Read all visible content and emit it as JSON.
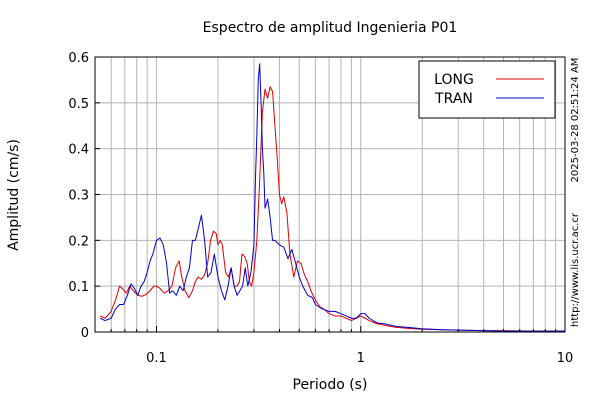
{
  "chart_data": {
    "type": "line",
    "title": "Espectro de amplitud Ingenieria P01",
    "xlabel": "Periodo (s)",
    "ylabel": "Amplitud (cm/s)",
    "x_scale": "log",
    "xlim": [
      0.05,
      10
    ],
    "ylim": [
      0,
      0.6
    ],
    "x_ticks": [
      {
        "value": 0.1,
        "label": "0.1"
      },
      {
        "value": 1,
        "label": "1"
      },
      {
        "value": 10,
        "label": "10"
      }
    ],
    "y_ticks": [
      {
        "value": 0,
        "label": "0"
      },
      {
        "value": 0.1,
        "label": "0.1"
      },
      {
        "value": 0.2,
        "label": "0.2"
      },
      {
        "value": 0.3,
        "label": "0.3"
      },
      {
        "value": 0.4,
        "label": "0.4"
      },
      {
        "value": 0.5,
        "label": "0.5"
      },
      {
        "value": 0.6,
        "label": "0.6"
      }
    ],
    "grid": true,
    "legend_position": "top-right",
    "side_labels": [
      "2025-03-28 02:51:24 AM",
      "http://www.lis.ucr.ac.cr"
    ],
    "series": [
      {
        "name": "LONG",
        "color": "#dd0000",
        "x": [
          0.053,
          0.056,
          0.06,
          0.063,
          0.066,
          0.068,
          0.071,
          0.074,
          0.077,
          0.081,
          0.085,
          0.089,
          0.093,
          0.097,
          0.1,
          0.104,
          0.109,
          0.114,
          0.119,
          0.124,
          0.129,
          0.133,
          0.138,
          0.144,
          0.15,
          0.155,
          0.16,
          0.166,
          0.172,
          0.178,
          0.184,
          0.19,
          0.196,
          0.2,
          0.205,
          0.21,
          0.218,
          0.225,
          0.232,
          0.24,
          0.248,
          0.255,
          0.262,
          0.27,
          0.278,
          0.285,
          0.292,
          0.3,
          0.31,
          0.32,
          0.33,
          0.34,
          0.35,
          0.36,
          0.37,
          0.38,
          0.39,
          0.4,
          0.41,
          0.42,
          0.435,
          0.45,
          0.47,
          0.49,
          0.51,
          0.53,
          0.55,
          0.57,
          0.6,
          0.63,
          0.66,
          0.7,
          0.75,
          0.8,
          0.85,
          0.9,
          0.95,
          1.0,
          1.05,
          1.1,
          1.2,
          1.3,
          1.4,
          1.5,
          1.7,
          2.0,
          2.5,
          3.0,
          4.0,
          5.0,
          7.0,
          10.0
        ],
        "y": [
          0.035,
          0.03,
          0.045,
          0.07,
          0.1,
          0.095,
          0.085,
          0.1,
          0.09,
          0.08,
          0.078,
          0.082,
          0.09,
          0.1,
          0.1,
          0.095,
          0.085,
          0.09,
          0.1,
          0.14,
          0.155,
          0.12,
          0.09,
          0.075,
          0.09,
          0.11,
          0.12,
          0.115,
          0.125,
          0.15,
          0.2,
          0.22,
          0.215,
          0.19,
          0.2,
          0.19,
          0.13,
          0.12,
          0.14,
          0.1,
          0.1,
          0.11,
          0.17,
          0.165,
          0.15,
          0.11,
          0.1,
          0.13,
          0.2,
          0.33,
          0.48,
          0.53,
          0.51,
          0.535,
          0.525,
          0.45,
          0.38,
          0.3,
          0.28,
          0.295,
          0.26,
          0.17,
          0.12,
          0.155,
          0.15,
          0.125,
          0.11,
          0.09,
          0.07,
          0.055,
          0.05,
          0.04,
          0.035,
          0.035,
          0.03,
          0.025,
          0.03,
          0.035,
          0.03,
          0.025,
          0.018,
          0.015,
          0.012,
          0.01,
          0.008,
          0.006,
          0.005,
          0.004,
          0.003,
          0.003,
          0.002,
          0.002
        ]
      },
      {
        "name": "TRAN",
        "color": "#0000cc",
        "x": [
          0.053,
          0.056,
          0.06,
          0.063,
          0.066,
          0.069,
          0.072,
          0.075,
          0.078,
          0.081,
          0.084,
          0.087,
          0.09,
          0.093,
          0.096,
          0.1,
          0.104,
          0.108,
          0.112,
          0.116,
          0.12,
          0.125,
          0.13,
          0.135,
          0.14,
          0.145,
          0.15,
          0.155,
          0.16,
          0.166,
          0.172,
          0.178,
          0.185,
          0.192,
          0.2,
          0.208,
          0.216,
          0.224,
          0.232,
          0.24,
          0.248,
          0.256,
          0.264,
          0.272,
          0.28,
          0.29,
          0.3,
          0.305,
          0.31,
          0.315,
          0.32,
          0.325,
          0.33,
          0.335,
          0.34,
          0.35,
          0.36,
          0.37,
          0.38,
          0.4,
          0.42,
          0.44,
          0.46,
          0.48,
          0.5,
          0.52,
          0.55,
          0.58,
          0.6,
          0.65,
          0.7,
          0.75,
          0.8,
          0.85,
          0.9,
          0.95,
          1.0,
          1.05,
          1.1,
          1.2,
          1.3,
          1.4,
          1.5,
          1.7,
          2.0,
          2.5,
          3.0,
          4.0,
          5.0,
          7.0,
          10.0
        ],
        "y": [
          0.03,
          0.025,
          0.03,
          0.05,
          0.06,
          0.06,
          0.08,
          0.105,
          0.095,
          0.08,
          0.1,
          0.11,
          0.13,
          0.155,
          0.17,
          0.2,
          0.205,
          0.19,
          0.15,
          0.085,
          0.09,
          0.08,
          0.1,
          0.09,
          0.12,
          0.14,
          0.2,
          0.2,
          0.225,
          0.255,
          0.2,
          0.12,
          0.13,
          0.17,
          0.12,
          0.09,
          0.07,
          0.1,
          0.14,
          0.1,
          0.08,
          0.09,
          0.1,
          0.14,
          0.1,
          0.13,
          0.19,
          0.33,
          0.43,
          0.55,
          0.585,
          0.5,
          0.4,
          0.35,
          0.27,
          0.29,
          0.25,
          0.2,
          0.2,
          0.19,
          0.185,
          0.16,
          0.18,
          0.15,
          0.12,
          0.1,
          0.08,
          0.075,
          0.06,
          0.05,
          0.045,
          0.045,
          0.04,
          0.035,
          0.03,
          0.03,
          0.04,
          0.04,
          0.03,
          0.02,
          0.018,
          0.015,
          0.012,
          0.01,
          0.007,
          0.005,
          0.004,
          0.003,
          0.002,
          0.002,
          0.002
        ]
      }
    ]
  }
}
